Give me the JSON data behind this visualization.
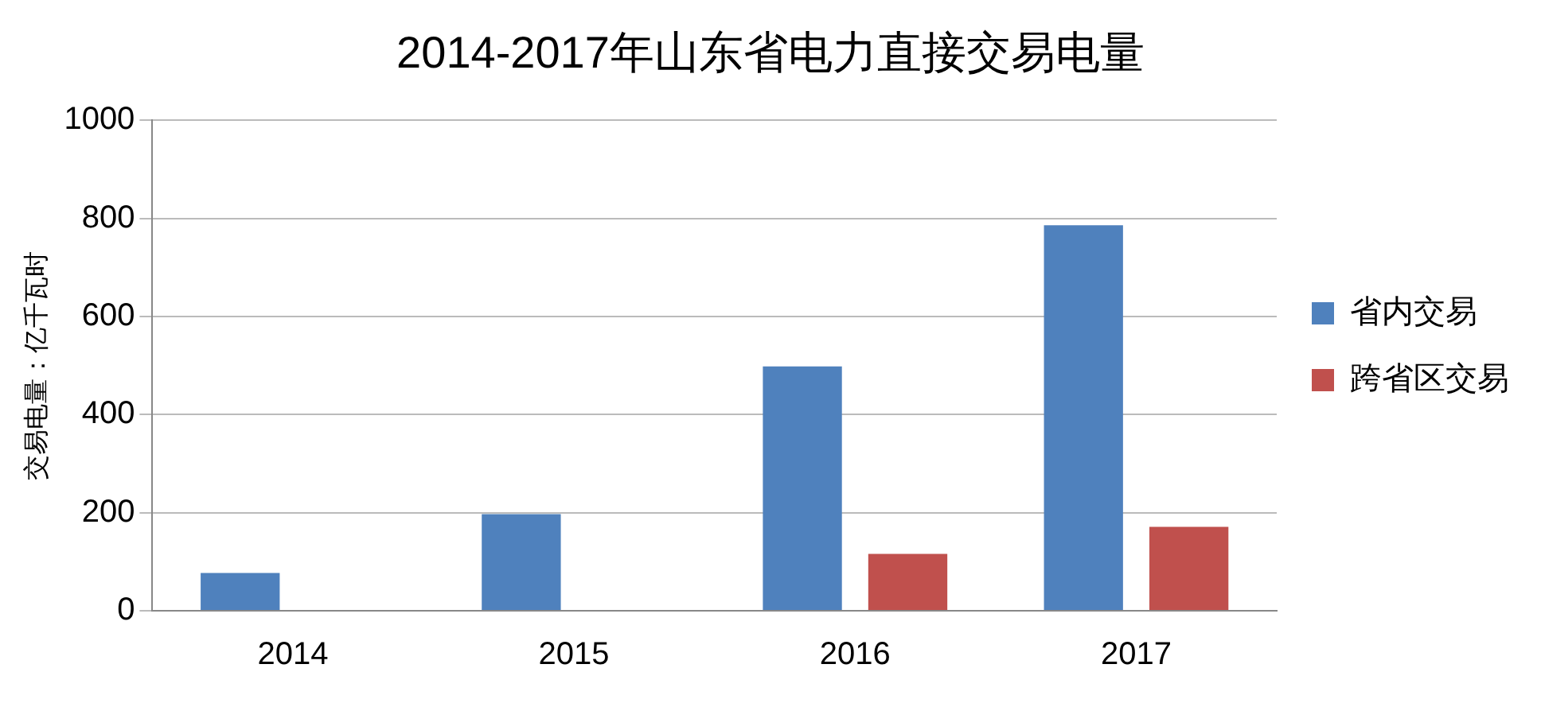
{
  "chart_data": {
    "type": "bar",
    "title": "2014-2017年山东省电力直接交易电量",
    "ylabel": "交易电量：亿千瓦时",
    "categories": [
      "2014",
      "2015",
      "2016",
      "2017"
    ],
    "series": [
      {
        "name": "省内交易",
        "color": "#4f81bd",
        "values": [
          77,
          197,
          498,
          786
        ]
      },
      {
        "name": "跨省区交易",
        "color": "#c0504d",
        "values": [
          null,
          null,
          116,
          171
        ]
      }
    ],
    "ylim": [
      0,
      1000
    ],
    "yticks": [
      0,
      200,
      400,
      600,
      800,
      1000
    ],
    "grid": "y",
    "legend": "right"
  }
}
